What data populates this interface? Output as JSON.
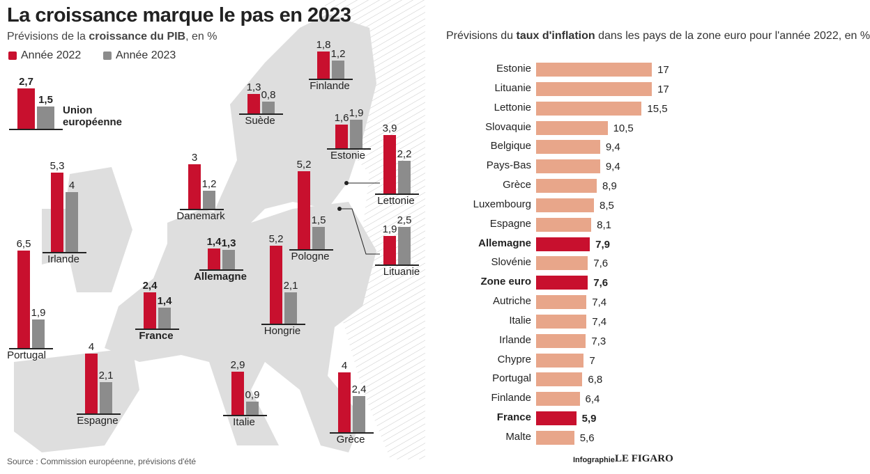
{
  "chart_data": [
    {
      "type": "bar",
      "title": "La croissance marque le pas en 2023",
      "subtitle": [
        "Prévisions de la ",
        "croissance du PIB",
        ", en %"
      ],
      "categories": [
        "Union européenne",
        "Finlande",
        "Suède",
        "Estonie",
        "Lettonie",
        "Danemark",
        "Irlande",
        "Pologne",
        "Lituanie",
        "Allemagne",
        "Portugal",
        "France",
        "Hongrie",
        "Espagne",
        "Italie",
        "Grèce"
      ],
      "series": [
        {
          "name": "Année 2022",
          "color": "#c8102e",
          "values": [
            2.7,
            1.8,
            1.3,
            1.6,
            3.9,
            3,
            5.3,
            5.2,
            1.9,
            1.4,
            6.5,
            2.4,
            5.2,
            4,
            2.9,
            4
          ],
          "value_labels": [
            "2,7",
            "1,8",
            "1,3",
            "1,6",
            "3,9",
            "3",
            "5,3",
            "5,2",
            "1,9",
            "1,4",
            "6,5",
            "2,4",
            "5,2",
            "4",
            "2,9",
            "4"
          ]
        },
        {
          "name": "Année 2023",
          "color": "#8c8c8c",
          "values": [
            1.5,
            1.2,
            0.8,
            1.9,
            2.2,
            1.2,
            4,
            1.5,
            2.5,
            1.3,
            1.9,
            1.4,
            2.1,
            2.1,
            0.9,
            2.4
          ],
          "value_labels": [
            "1,5",
            "1,2",
            "0,8",
            "1,9",
            "2,2",
            "1,2",
            "4",
            "1,5",
            "2,5",
            "1,3",
            "1,9",
            "1,4",
            "2,1",
            "2,1",
            "0,9",
            "2,4"
          ]
        }
      ],
      "source": "Source : Commission européenne, prévisions d'été"
    },
    {
      "type": "hbar",
      "title": [
        "Prévisions du ",
        "taux d'inflation",
        " dans les pays de la zone euro pour l'année 2022, en %"
      ],
      "categories": [
        "Estonie",
        "Lituanie",
        "Lettonie",
        "Slovaquie",
        "Belgique",
        "Pays-Bas",
        "Grèce",
        "Luxembourg",
        "Espagne",
        "Allemagne",
        "Slovénie",
        "Zone euro",
        "Autriche",
        "Italie",
        "Irlande",
        "Chypre",
        "Portugal",
        "Finlande",
        "France",
        "Malte"
      ],
      "values": [
        17,
        17,
        15.5,
        10.5,
        9.4,
        9.4,
        8.9,
        8.5,
        8.1,
        7.9,
        7.6,
        7.6,
        7.4,
        7.4,
        7.3,
        7,
        6.8,
        6.4,
        5.9,
        5.6
      ],
      "value_labels": [
        "17",
        "17",
        "15,5",
        "10,5",
        "9,4",
        "9,4",
        "8,9",
        "8,5",
        "8,1",
        "7,9",
        "7,6",
        "7,6",
        "7,4",
        "7,4",
        "7,3",
        "7",
        "6,8",
        "6,4",
        "5,9",
        "5,6"
      ],
      "colors": [
        "#e8a68a",
        "#e8a68a",
        "#e8a68a",
        "#e8a68a",
        "#e8a68a",
        "#e8a68a",
        "#e8a68a",
        "#e8a68a",
        "#e8a68a",
        "#c8102e",
        "#e8a68a",
        "#c8102e",
        "#e8a68a",
        "#e8a68a",
        "#e8a68a",
        "#e8a68a",
        "#e8a68a",
        "#e8a68a",
        "#c8102e",
        "#e8a68a"
      ],
      "highlight_color": "#c8102e",
      "credit": [
        "Infographie",
        "LE FIGARO"
      ]
    }
  ]
}
